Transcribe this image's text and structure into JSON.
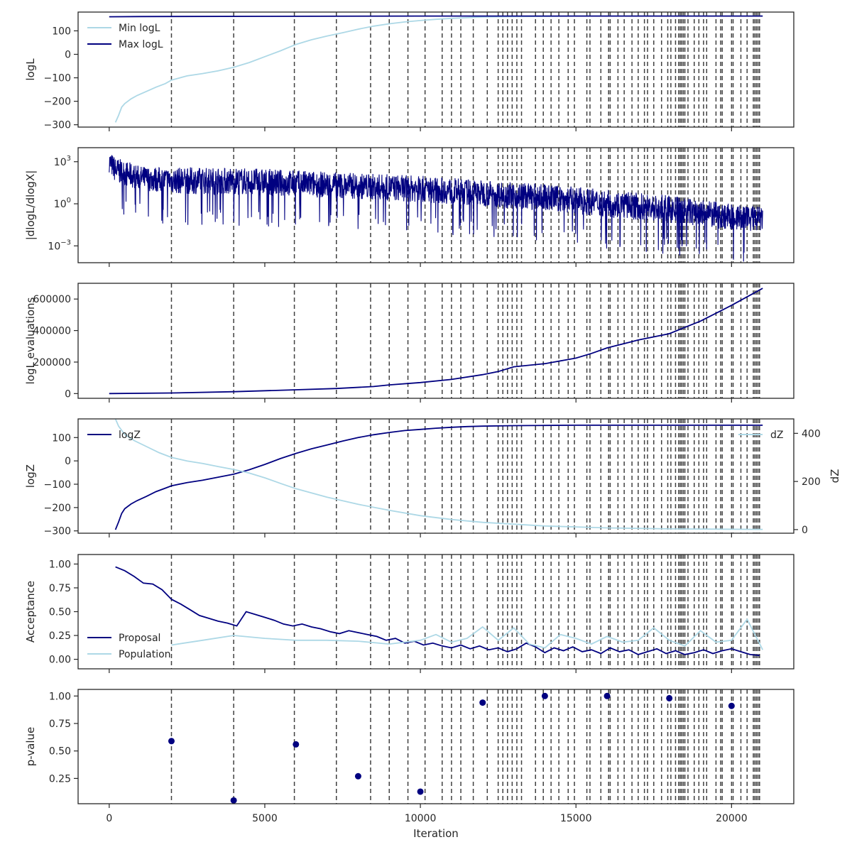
{
  "chart_data": [
    {
      "type": "line",
      "ylabel": "logL",
      "ylim": [
        -310,
        180
      ],
      "yticks": [
        {
          "v": 100,
          "label": "100"
        },
        {
          "v": 0,
          "label": "0"
        },
        {
          "v": -100,
          "label": "−100"
        },
        {
          "v": -200,
          "label": "−200"
        },
        {
          "v": -300,
          "label": "−300"
        }
      ],
      "legend": "upper-left",
      "series": [
        {
          "name": "Min logL",
          "color": "#add8e6",
          "x": [
            200,
            300,
            400,
            500,
            700,
            900,
            1200,
            1500,
            1800,
            2000,
            2500,
            3000,
            3500,
            4000,
            4500,
            5000,
            5500,
            6000,
            6500,
            7000,
            7500,
            8000,
            8500,
            9000,
            9500,
            10000,
            10500,
            11000,
            11500,
            12000,
            13000,
            14000,
            15000,
            17000,
            19000,
            21000
          ],
          "y": [
            -290,
            -260,
            -225,
            -210,
            -190,
            -175,
            -158,
            -140,
            -125,
            -110,
            -92,
            -82,
            -70,
            -55,
            -35,
            -10,
            15,
            42,
            62,
            78,
            92,
            107,
            120,
            130,
            138,
            144,
            149,
            153,
            156,
            159,
            161,
            162,
            163,
            163,
            163,
            163
          ]
        },
        {
          "name": "Max logL",
          "color": "#000080",
          "x": [
            0,
            1000,
            5000,
            10000,
            15000,
            21000
          ],
          "y": [
            160,
            161,
            162,
            163,
            163,
            163
          ]
        }
      ]
    },
    {
      "type": "line",
      "ylabel": "|dlogL/dlogX|",
      "scale": "log",
      "ylim": [
        -4.2,
        4.0
      ],
      "yticks": [
        {
          "v": 3,
          "base": "10",
          "exp": "3"
        },
        {
          "v": 0,
          "base": "10",
          "exp": "0"
        },
        {
          "v": -3,
          "base": "10",
          "exp": "−3"
        }
      ],
      "series": [
        {
          "name": "",
          "color": "#000080",
          "log10_envelope": {
            "x": [
              0,
              200,
              1000,
              2000,
              4000,
              6000,
              8000,
              10000,
              12000,
              14000,
              16000,
              18000,
              20000,
              21000
            ],
            "upper": [
              3.8,
              3.3,
              2.7,
              2.6,
              2.6,
              2.4,
              2.2,
              2.0,
              1.7,
              1.4,
              1.0,
              0.6,
              0.0,
              -0.2
            ],
            "lower": [
              1.4,
              0.5,
              0.0,
              -0.3,
              -0.4,
              -0.5,
              -0.7,
              -0.9,
              -1.2,
              -1.5,
              -2.0,
              -2.5,
              -2.9,
              -3.0
            ]
          }
        }
      ]
    },
    {
      "type": "line",
      "ylabel": "logL evaluations",
      "ylim": [
        -30000,
        700000
      ],
      "yticks": [
        {
          "v": 600000,
          "label": "600000"
        },
        {
          "v": 400000,
          "label": "400000"
        },
        {
          "v": 200000,
          "label": "200000"
        },
        {
          "v": 0,
          "label": "0"
        }
      ],
      "series": [
        {
          "name": "",
          "color": "#000080",
          "x": [
            0,
            2000,
            4000,
            6000,
            7300,
            8500,
            9000,
            10000,
            11000,
            12000,
            12500,
            13000,
            14000,
            15000,
            15500,
            16000,
            17000,
            18000,
            18500,
            19000,
            20000,
            21000
          ],
          "y": [
            0,
            4000,
            12000,
            24000,
            32000,
            45000,
            55000,
            70000,
            90000,
            120000,
            140000,
            170000,
            190000,
            225000,
            255000,
            290000,
            340000,
            380000,
            420000,
            460000,
            560000,
            668000
          ]
        }
      ]
    },
    {
      "type": "line",
      "ylabel": "logZ",
      "ylim": [
        -310,
        180
      ],
      "yticks": [
        {
          "v": 100,
          "label": "100"
        },
        {
          "v": 0,
          "label": "0"
        },
        {
          "v": -100,
          "label": "−100"
        },
        {
          "v": -200,
          "label": "−200"
        },
        {
          "v": -300,
          "label": "−300"
        }
      ],
      "y2label": "dZ",
      "y2lim": [
        -15,
        460
      ],
      "y2ticks": [
        {
          "v": 400,
          "label": "400"
        },
        {
          "v": 200,
          "label": "200"
        },
        {
          "v": 0,
          "label": "0"
        }
      ],
      "legend": "upper-left",
      "legend2": "upper-right",
      "series": [
        {
          "name": "logZ",
          "color": "#000080",
          "axis": "left",
          "x": [
            200,
            300,
            400,
            500,
            700,
            900,
            1200,
            1500,
            1800,
            2000,
            2500,
            3000,
            3500,
            4000,
            4500,
            5000,
            5500,
            6000,
            6500,
            7000,
            7500,
            8000,
            8500,
            9000,
            9500,
            10000,
            10500,
            11000,
            11500,
            12000,
            13000,
            14000,
            15000,
            17000,
            19000,
            21000
          ],
          "y": [
            -295,
            -262,
            -225,
            -205,
            -185,
            -170,
            -152,
            -132,
            -117,
            -107,
            -93,
            -83,
            -70,
            -57,
            -38,
            -15,
            10,
            32,
            52,
            68,
            85,
            100,
            112,
            122,
            130,
            135,
            140,
            144,
            147,
            149,
            151,
            152,
            153,
            153,
            153,
            153
          ]
        },
        {
          "name": "dZ",
          "color": "#add8e6",
          "axis": "right",
          "x": [
            200,
            300,
            500,
            800,
            1200,
            1600,
            2000,
            2500,
            3000,
            3500,
            4000,
            4500,
            5000,
            5500,
            6000,
            7000,
            8000,
            9000,
            10000,
            11000,
            12000,
            14000,
            16000,
            18000,
            21000
          ],
          "y": [
            460,
            430,
            395,
            370,
            345,
            320,
            300,
            285,
            275,
            262,
            250,
            235,
            215,
            192,
            170,
            135,
            105,
            80,
            58,
            42,
            30,
            15,
            7,
            3,
            1
          ]
        }
      ]
    },
    {
      "type": "line",
      "ylabel": "Acceptance",
      "ylim": [
        -0.1,
        1.1
      ],
      "yticks": [
        {
          "v": 1.0,
          "label": "1.00"
        },
        {
          "v": 0.75,
          "label": "0.75"
        },
        {
          "v": 0.5,
          "label": "0.50"
        },
        {
          "v": 0.25,
          "label": "0.25"
        },
        {
          "v": 0.0,
          "label": "0.00"
        }
      ],
      "legend": "lower-left",
      "series": [
        {
          "name": "Proposal",
          "color": "#000080",
          "x": [
            200,
            500,
            800,
            1100,
            1400,
            1700,
            2000,
            2300,
            2600,
            2900,
            3200,
            3500,
            3800,
            4100,
            4400,
            4700,
            5000,
            5300,
            5600,
            5900,
            6200,
            6500,
            6800,
            7100,
            7400,
            7700,
            8000,
            8300,
            8600,
            8900,
            9200,
            9500,
            9800,
            10100,
            10400,
            10700,
            11000,
            11300,
            11600,
            11900,
            12200,
            12500,
            12800,
            13100,
            13400,
            13700,
            14000,
            14300,
            14600,
            14900,
            15200,
            15500,
            15800,
            16100,
            16400,
            16700,
            17000,
            17300,
            17600,
            17900,
            18200,
            18500,
            18800,
            19100,
            19400,
            19700,
            20000,
            20300,
            20600,
            20900
          ],
          "y": [
            0.97,
            0.93,
            0.87,
            0.8,
            0.79,
            0.73,
            0.63,
            0.58,
            0.52,
            0.46,
            0.43,
            0.4,
            0.38,
            0.35,
            0.5,
            0.47,
            0.44,
            0.41,
            0.37,
            0.35,
            0.37,
            0.34,
            0.32,
            0.29,
            0.27,
            0.3,
            0.28,
            0.26,
            0.24,
            0.2,
            0.22,
            0.17,
            0.19,
            0.15,
            0.17,
            0.14,
            0.12,
            0.15,
            0.11,
            0.14,
            0.1,
            0.12,
            0.08,
            0.11,
            0.17,
            0.13,
            0.07,
            0.12,
            0.09,
            0.13,
            0.08,
            0.1,
            0.06,
            0.12,
            0.08,
            0.1,
            0.05,
            0.08,
            0.11,
            0.06,
            0.09,
            0.05,
            0.07,
            0.1,
            0.06,
            0.09,
            0.11,
            0.08,
            0.05,
            0.04
          ]
        },
        {
          "name": "Population",
          "color": "#add8e6",
          "x": [
            2000,
            3000,
            4000,
            5000,
            6000,
            7000,
            8000,
            9000,
            10000,
            10500,
            11000,
            11500,
            12000,
            12500,
            13000,
            13500,
            14000,
            14500,
            15000,
            15500,
            16000,
            16500,
            17000,
            17500,
            18000,
            18500,
            19000,
            19500,
            20000,
            20500,
            21000
          ],
          "y": [
            0.15,
            0.2,
            0.25,
            0.22,
            0.2,
            0.2,
            0.19,
            0.16,
            0.2,
            0.26,
            0.18,
            0.22,
            0.34,
            0.2,
            0.33,
            0.16,
            0.12,
            0.26,
            0.22,
            0.16,
            0.24,
            0.18,
            0.2,
            0.33,
            0.2,
            0.14,
            0.3,
            0.18,
            0.2,
            0.42,
            0.1
          ]
        }
      ]
    },
    {
      "type": "scatter",
      "ylabel": "p-value",
      "xlabel": "Iteration",
      "ylim": [
        0.02,
        1.06
      ],
      "xticks": [
        0,
        5000,
        10000,
        15000,
        20000
      ],
      "yticks": [
        {
          "v": 1.0,
          "label": "1.00"
        },
        {
          "v": 0.75,
          "label": "0.75"
        },
        {
          "v": 0.5,
          "label": "0.50"
        },
        {
          "v": 0.25,
          "label": "0.25"
        }
      ],
      "series": [
        {
          "name": "",
          "color": "#000080",
          "x": [
            2000,
            4000,
            6000,
            8000,
            10000,
            12000,
            14000,
            16000,
            18000,
            20000
          ],
          "y": [
            0.59,
            0.05,
            0.56,
            0.27,
            0.13,
            0.94,
            1.0,
            1.0,
            0.98,
            0.91
          ]
        }
      ]
    }
  ],
  "x_axis": {
    "label": "Iteration",
    "xlim": [
      -1000,
      22000
    ],
    "ticks": [
      "0",
      "5000",
      "10000",
      "15000",
      "20000"
    ],
    "tick_values": [
      0,
      5000,
      10000,
      15000,
      20000
    ]
  },
  "insertion_lines": [
    2000,
    4000,
    5950,
    7300,
    8400,
    9000,
    9600,
    10150,
    10700,
    11000,
    11300,
    11700,
    12150,
    12500,
    12650,
    12800,
    12950,
    13100,
    13250,
    13700,
    13950,
    14200,
    14450,
    14750,
    14950,
    15350,
    15450,
    15800,
    16050,
    16100,
    16350,
    16550,
    16800,
    17000,
    17200,
    17300,
    17500,
    17750,
    17950,
    18050,
    18200,
    18300,
    18350,
    18400,
    18450,
    18500,
    18600,
    18800,
    18950,
    19100,
    19200,
    19500,
    19650,
    19700,
    20000,
    20050,
    20300,
    20500,
    20700,
    20750,
    20800,
    20850,
    20900
  ],
  "colors": {
    "navy": "#000080",
    "lightblue": "#add8e6",
    "vline": "#404040",
    "frame": "#262626"
  }
}
